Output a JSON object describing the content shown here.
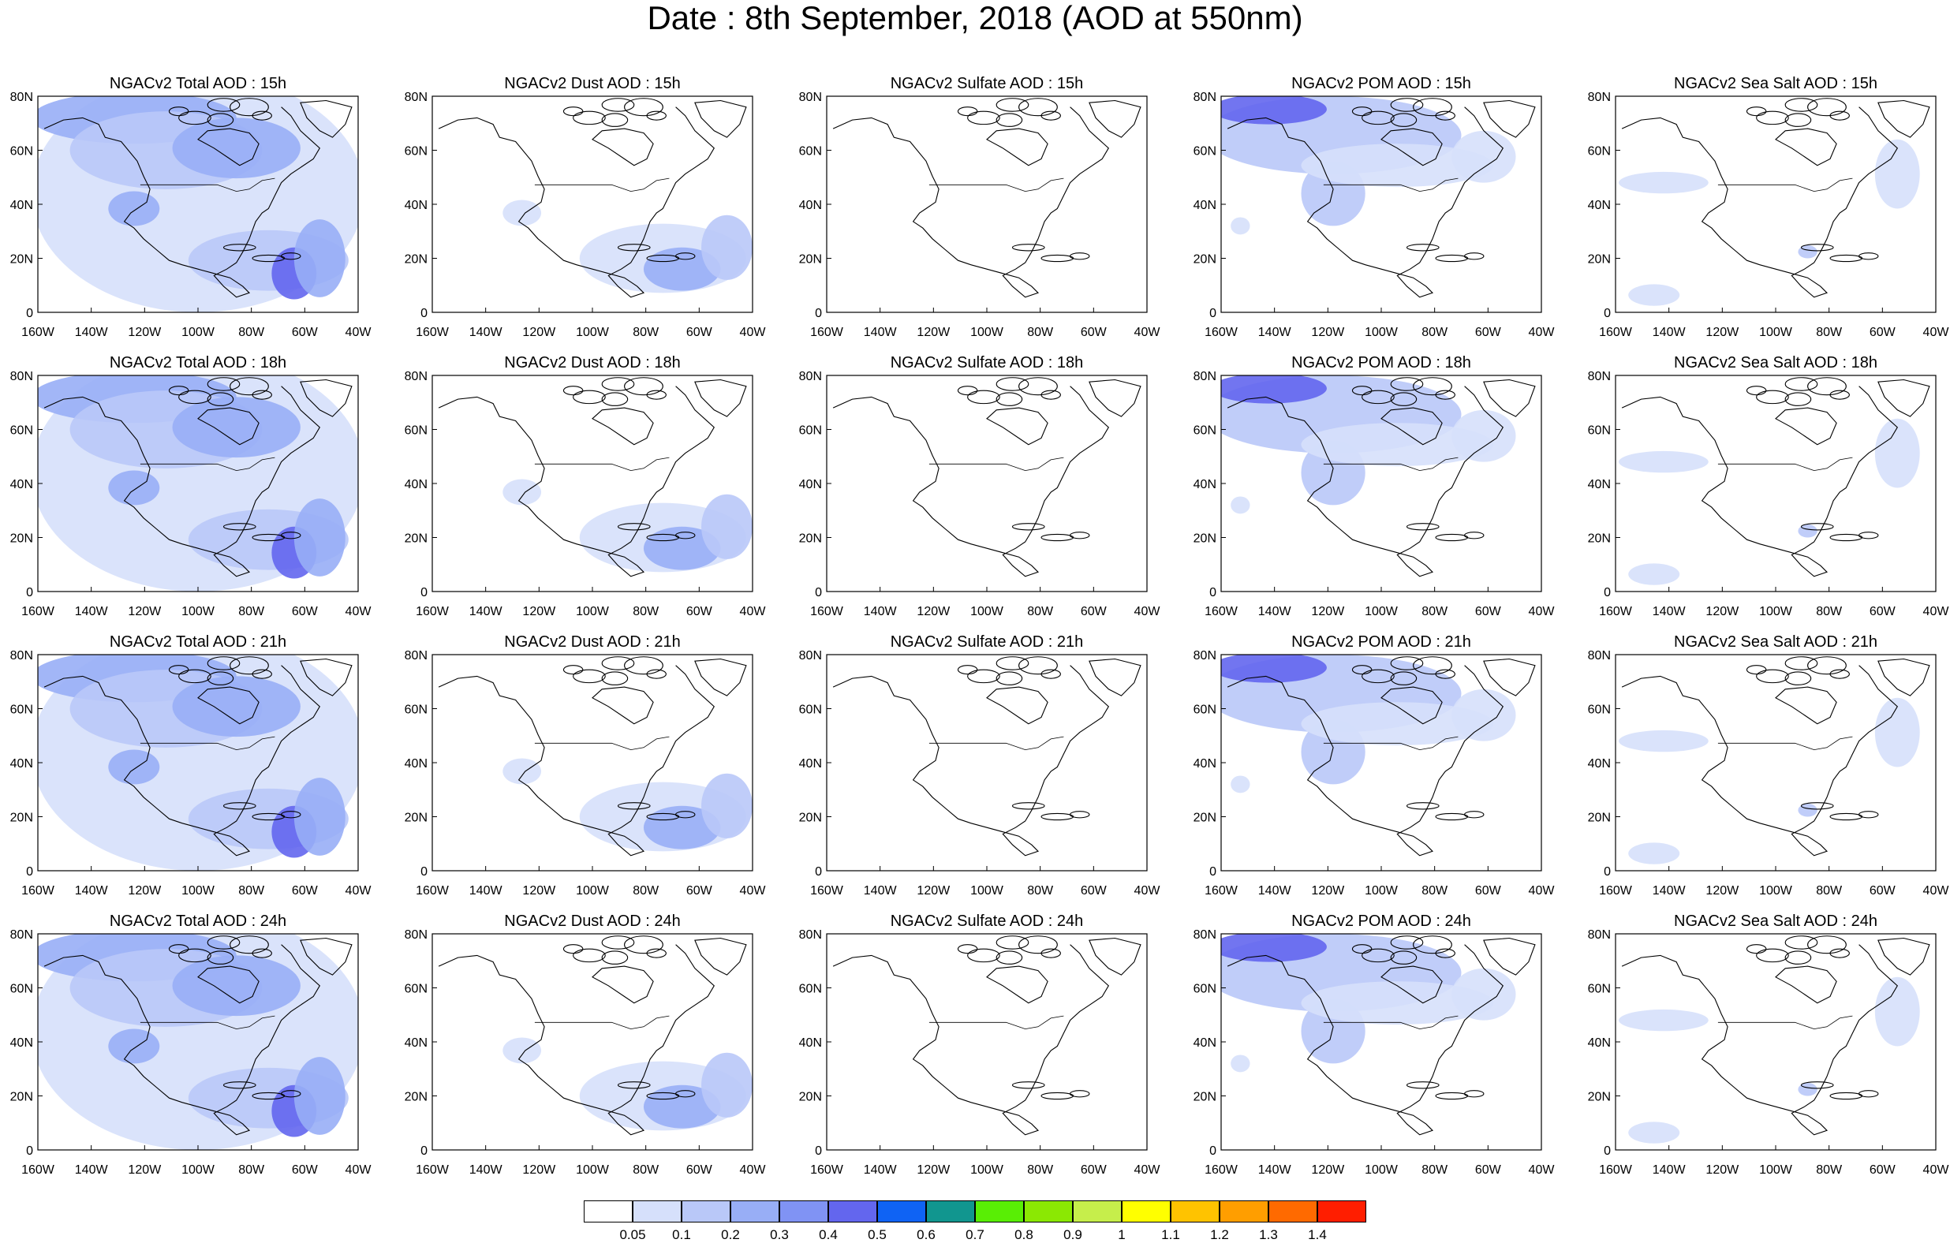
{
  "title": "Date : 8th September, 2018 (AOD at 550nm)",
  "columns": [
    "NGACv2 Total AOD",
    "NGACv2 Dust AOD",
    "NGACv2 Sulfate AOD",
    "NGACv2 POM AOD",
    "NGACv2 Sea Salt AOD"
  ],
  "rows": [
    "15h",
    "18h",
    "21h",
    "24h"
  ],
  "panel_titles": [
    [
      "NGACv2 Total AOD : 15h",
      "NGACv2 Dust AOD : 15h",
      "NGACv2 Sulfate AOD : 15h",
      "NGACv2 POM AOD : 15h",
      "NGACv2 Sea Salt AOD : 15h"
    ],
    [
      "NGACv2 Total AOD : 18h",
      "NGACv2 Dust AOD : 18h",
      "NGACv2 Sulfate AOD : 18h",
      "NGACv2 POM AOD : 18h",
      "NGACv2 Sea Salt AOD : 18h"
    ],
    [
      "NGACv2 Total AOD : 21h",
      "NGACv2 Dust AOD : 21h",
      "NGACv2 Sulfate AOD : 21h",
      "NGACv2 POM AOD : 21h",
      "NGACv2 Sea Salt AOD : 21h"
    ],
    [
      "NGACv2 Total AOD : 24h",
      "NGACv2 Dust AOD : 24h",
      "NGACv2 Sulfate AOD : 24h",
      "NGACv2 POM AOD : 24h",
      "NGACv2 Sea Salt  AOD : 24h"
    ]
  ],
  "axes": {
    "x_ticks": [
      "160W",
      "140W",
      "120W",
      "100W",
      "80W",
      "60W",
      "40W"
    ],
    "y_ticks": [
      "0",
      "20N",
      "40N",
      "60N",
      "80N"
    ],
    "lon_range": [
      -160,
      -40
    ],
    "lat_range": [
      0,
      80
    ]
  },
  "colorbar": {
    "labels": [
      "0.05",
      "0.1",
      "0.2",
      "0.3",
      "0.4",
      "0.5",
      "0.6",
      "0.7",
      "0.8",
      "0.9",
      "1",
      "1.1",
      "1.2",
      "1.3",
      "1.4"
    ],
    "colors": [
      "#ffffff",
      "#d6e0fb",
      "#b9c8f8",
      "#98aef6",
      "#8093f4",
      "#6366ee",
      "#0f63f4",
      "#11968f",
      "#59ee05",
      "#8be803",
      "#c6ee4b",
      "#ffff00",
      "#ffc300",
      "#ff9e00",
      "#ff6a00",
      "#ff1e00"
    ]
  }
}
